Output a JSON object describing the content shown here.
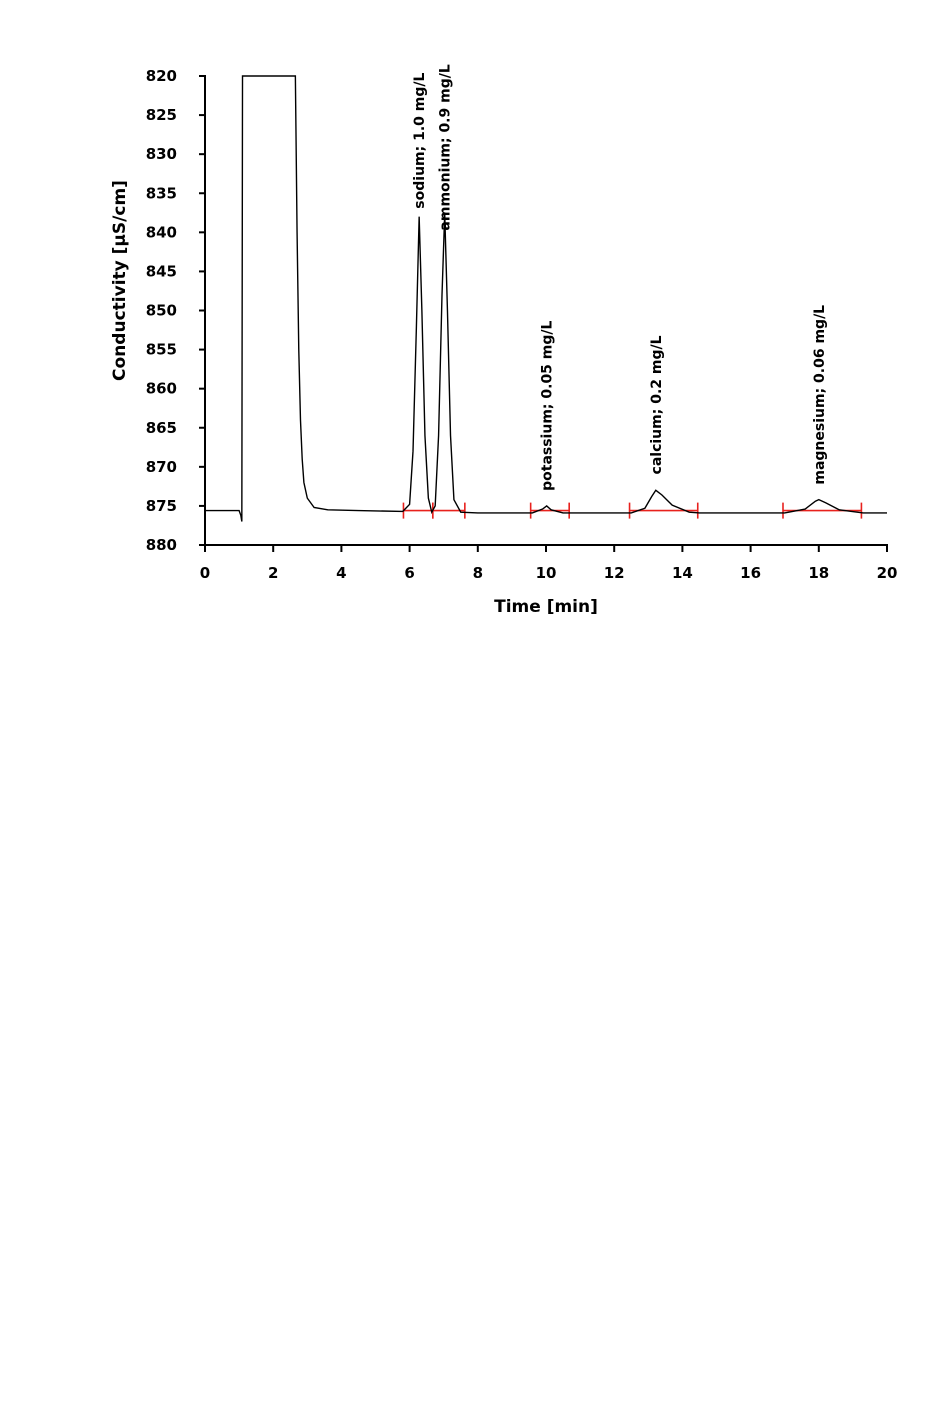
{
  "chart_data": {
    "type": "line",
    "title": "",
    "xlabel": "Time [min]",
    "ylabel": "Conductivity [µS/cm]",
    "xlim": [
      0,
      20
    ],
    "ylim": [
      880,
      820
    ],
    "y_axis_inverted": true,
    "grid": false,
    "x_ticks": [
      0,
      2,
      4,
      6,
      8,
      10,
      12,
      14,
      16,
      18,
      20
    ],
    "y_ticks": [
      820,
      825,
      830,
      835,
      840,
      845,
      850,
      855,
      860,
      865,
      870,
      875,
      880
    ],
    "baseline": 875.6,
    "series": [
      {
        "name": "",
        "color": "#000000",
        "points": [
          [
            0,
            875.6
          ],
          [
            1.0,
            875.6
          ],
          [
            1.05,
            876.2
          ],
          [
            1.08,
            877.0
          ],
          [
            1.1,
            820
          ],
          [
            2.65,
            820
          ],
          [
            2.7,
            840
          ],
          [
            2.75,
            855
          ],
          [
            2.8,
            864
          ],
          [
            2.85,
            869
          ],
          [
            2.9,
            872
          ],
          [
            3.0,
            874
          ],
          [
            3.2,
            875.2
          ],
          [
            3.6,
            875.5
          ],
          [
            4.5,
            875.6
          ],
          [
            5.8,
            875.7
          ],
          [
            6.0,
            874.8
          ],
          [
            6.1,
            868
          ],
          [
            6.2,
            852
          ],
          [
            6.28,
            838.0
          ],
          [
            6.36,
            850
          ],
          [
            6.45,
            866
          ],
          [
            6.55,
            874.0
          ],
          [
            6.65,
            875.8
          ],
          [
            6.75,
            875.0
          ],
          [
            6.85,
            866
          ],
          [
            6.95,
            848
          ],
          [
            7.03,
            837.6
          ],
          [
            7.11,
            850
          ],
          [
            7.2,
            866
          ],
          [
            7.3,
            874.2
          ],
          [
            7.5,
            875.8
          ],
          [
            8.0,
            875.9
          ],
          [
            9.6,
            875.9
          ],
          [
            9.9,
            875.4
          ],
          [
            10.02,
            875.0
          ],
          [
            10.15,
            875.5
          ],
          [
            10.5,
            875.9
          ],
          [
            12.5,
            875.9
          ],
          [
            12.9,
            875.3
          ],
          [
            13.1,
            873.8
          ],
          [
            13.22,
            873.0
          ],
          [
            13.4,
            873.6
          ],
          [
            13.7,
            874.9
          ],
          [
            14.2,
            875.8
          ],
          [
            14.5,
            875.9
          ],
          [
            17.0,
            875.9
          ],
          [
            17.6,
            875.4
          ],
          [
            17.9,
            874.4
          ],
          [
            18.0,
            874.2
          ],
          [
            18.2,
            874.6
          ],
          [
            18.6,
            875.5
          ],
          [
            19.3,
            875.9
          ],
          [
            20.0,
            875.9
          ]
        ]
      }
    ],
    "integration_baselines": {
      "color": "#e8211d",
      "segments": [
        {
          "x": [
            5.82,
            6.68
          ]
        },
        {
          "x": [
            6.68,
            7.62
          ]
        },
        {
          "x": [
            9.55,
            10.68
          ]
        },
        {
          "x": [
            12.45,
            14.45
          ]
        },
        {
          "x": [
            16.95,
            19.25
          ]
        }
      ]
    },
    "annotations": [
      {
        "text": "sodium; 1.0 mg/L",
        "x": 6.28,
        "y": 838.0
      },
      {
        "text": "ammonium; 0.9 mg/L",
        "x": 7.03,
        "y": 840.8
      },
      {
        "text": "potassium; 0.05 mg/L",
        "x": 10.02,
        "y": 874.1
      },
      {
        "text": "calcium; 0.2 mg/L",
        "x": 13.22,
        "y": 872.0
      },
      {
        "text": "magnesium; 0.06 mg/L",
        "x": 18.0,
        "y": 873.3
      }
    ]
  }
}
